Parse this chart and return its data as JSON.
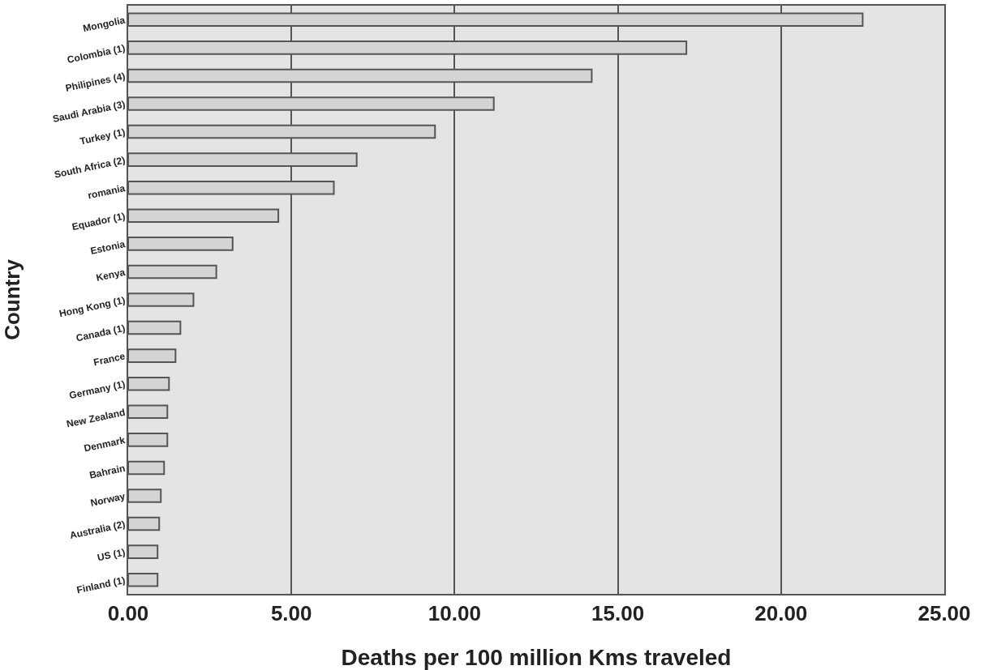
{
  "chart_data": {
    "type": "bar",
    "orientation": "horizontal",
    "xlabel": "Deaths per 100 million Kms traveled",
    "ylabel": "Country",
    "categories": [
      "Mongolia",
      "Colombia (1)",
      "Philipines (4)",
      "Saudi Arabia (3)",
      "Turkey (1)",
      "South Africa (2)",
      "romania",
      "Equador (1)",
      "Estonia",
      "Kenya",
      "Hong Kong (1)",
      "Canada (1)",
      "France",
      "Germany (1)",
      "New Zealand",
      "Denmark",
      "Bahrain",
      "Norway",
      "Australia (2)",
      "US (1)",
      "Finland (1)"
    ],
    "values": [
      22.5,
      17.1,
      14.2,
      11.2,
      9.4,
      7.0,
      6.3,
      4.6,
      3.2,
      2.7,
      2.0,
      1.6,
      1.45,
      1.25,
      1.2,
      1.2,
      1.1,
      1.0,
      0.95,
      0.9,
      0.9
    ],
    "color": "#d4d4d4",
    "xlim": [
      0,
      25
    ],
    "xticks": [
      {
        "value": 0,
        "label": "0.00"
      },
      {
        "value": 5,
        "label": "5.00"
      },
      {
        "value": 10,
        "label": "10.00"
      },
      {
        "value": 15,
        "label": "15.00"
      },
      {
        "value": 20,
        "label": "20.00"
      },
      {
        "value": 25,
        "label": "25.00"
      }
    ],
    "grid": "x"
  }
}
